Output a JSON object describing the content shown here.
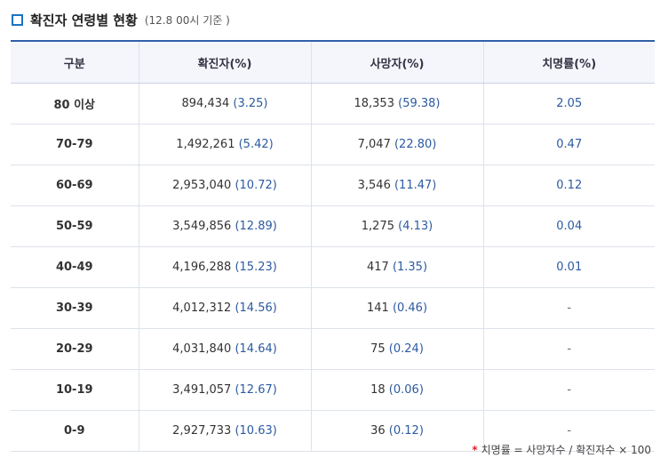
{
  "title": "확진자 연령별 현황",
  "date_note": "(12.8 00시 기준 )",
  "table": {
    "headers": [
      "구분",
      "확진자(%)",
      "사망자(%)",
      "치명률(%)"
    ],
    "rows": [
      {
        "group": "80 이상",
        "cases": "894,434",
        "cases_pct": "(3.25)",
        "deaths": "18,353",
        "deaths_pct": "(59.38)",
        "fatality": "2.05"
      },
      {
        "group": "70-79",
        "cases": "1,492,261",
        "cases_pct": "(5.42)",
        "deaths": "7,047",
        "deaths_pct": "(22.80)",
        "fatality": "0.47"
      },
      {
        "group": "60-69",
        "cases": "2,953,040",
        "cases_pct": "(10.72)",
        "deaths": "3,546",
        "deaths_pct": "(11.47)",
        "fatality": "0.12"
      },
      {
        "group": "50-59",
        "cases": "3,549,856",
        "cases_pct": "(12.89)",
        "deaths": "1,275",
        "deaths_pct": "(4.13)",
        "fatality": "0.04"
      },
      {
        "group": "40-49",
        "cases": "4,196,288",
        "cases_pct": "(15.23)",
        "deaths": "417",
        "deaths_pct": "(1.35)",
        "fatality": "0.01"
      },
      {
        "group": "30-39",
        "cases": "4,012,312",
        "cases_pct": "(14.56)",
        "deaths": "141",
        "deaths_pct": "(0.46)",
        "fatality": "-"
      },
      {
        "group": "20-29",
        "cases": "4,031,840",
        "cases_pct": "(14.64)",
        "deaths": "75",
        "deaths_pct": "(0.24)",
        "fatality": "-"
      },
      {
        "group": "10-19",
        "cases": "3,491,057",
        "cases_pct": "(12.67)",
        "deaths": "18",
        "deaths_pct": "(0.06)",
        "fatality": "-"
      },
      {
        "group": "0-9",
        "cases": "2,927,733",
        "cases_pct": "(10.63)",
        "deaths": "36",
        "deaths_pct": "(0.12)",
        "fatality": "-"
      }
    ]
  },
  "footnote": {
    "marker": "*",
    "text": "치명률 = 사망자수 / 확진자수 × 100"
  },
  "colors": {
    "accent": "#1a73c2",
    "header_border": "#2f5fa8",
    "value_blue": "#2c5aa0",
    "footnote_marker": "#d9232e"
  }
}
